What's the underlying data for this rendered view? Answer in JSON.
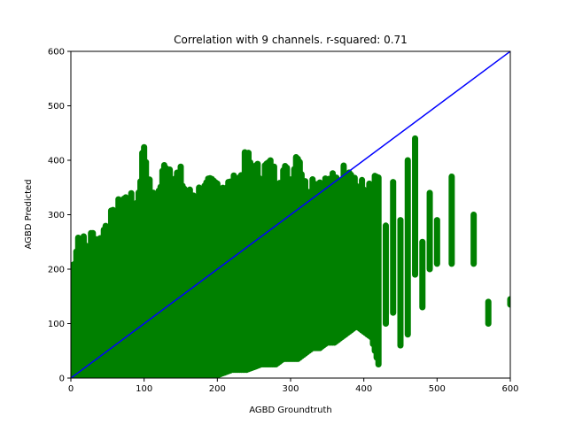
{
  "chart_data": {
    "type": "scatter",
    "title": "Correlation with 9 channels. r-squared: 0.71",
    "xlabel": "AGBD Groundtruth",
    "ylabel": "AGBD Predicted",
    "xlim": [
      0,
      600
    ],
    "ylim": [
      0,
      600
    ],
    "xticks": [
      0,
      100,
      200,
      300,
      400,
      500,
      600
    ],
    "yticks": [
      0,
      100,
      200,
      300,
      400,
      500,
      600
    ],
    "grid": false,
    "series": [
      {
        "color": "#008000",
        "marker": "circle",
        "bands": [
          [
            0,
            0,
            190
          ],
          [
            10,
            0,
            260
          ],
          [
            20,
            0,
            240
          ],
          [
            30,
            0,
            260
          ],
          [
            40,
            0,
            250
          ],
          [
            50,
            0,
            290
          ],
          [
            60,
            0,
            290
          ],
          [
            70,
            0,
            330
          ],
          [
            80,
            0,
            320
          ],
          [
            90,
            0,
            320
          ],
          [
            100,
            0,
            430
          ],
          [
            110,
            0,
            320
          ],
          [
            120,
            0,
            340
          ],
          [
            130,
            0,
            400
          ],
          [
            140,
            0,
            370
          ],
          [
            150,
            0,
            370
          ],
          [
            160,
            0,
            330
          ],
          [
            170,
            5,
            340
          ],
          [
            180,
            10,
            340
          ],
          [
            190,
            10,
            350
          ],
          [
            200,
            10,
            355
          ],
          [
            210,
            15,
            355
          ],
          [
            220,
            20,
            350
          ],
          [
            230,
            20,
            365
          ],
          [
            240,
            20,
            405
          ],
          [
            250,
            25,
            380
          ],
          [
            260,
            30,
            375
          ],
          [
            270,
            30,
            390
          ],
          [
            280,
            30,
            370
          ],
          [
            290,
            40,
            380
          ],
          [
            300,
            40,
            365
          ],
          [
            310,
            40,
            420
          ],
          [
            320,
            50,
            350
          ],
          [
            330,
            60,
            360
          ],
          [
            340,
            60,
            360
          ],
          [
            350,
            70,
            355
          ],
          [
            360,
            70,
            360
          ],
          [
            370,
            80,
            370
          ],
          [
            380,
            90,
            390
          ],
          [
            390,
            100,
            355
          ],
          [
            400,
            90,
            345
          ],
          [
            410,
            80,
            340
          ],
          [
            420,
            30,
            370
          ],
          [
            430,
            100,
            280
          ],
          [
            440,
            120,
            360
          ],
          [
            450,
            60,
            290
          ],
          [
            460,
            80,
            400
          ],
          [
            470,
            190,
            440
          ],
          [
            480,
            130,
            250
          ],
          [
            490,
            200,
            340
          ],
          [
            500,
            210,
            290
          ],
          [
            520,
            210,
            370
          ],
          [
            550,
            210,
            300
          ],
          [
            570,
            100,
            140
          ],
          [
            600,
            135,
            145
          ]
        ]
      }
    ],
    "reference_line": {
      "x": [
        0,
        600
      ],
      "y": [
        0,
        600
      ],
      "color": "#0000ff"
    }
  }
}
